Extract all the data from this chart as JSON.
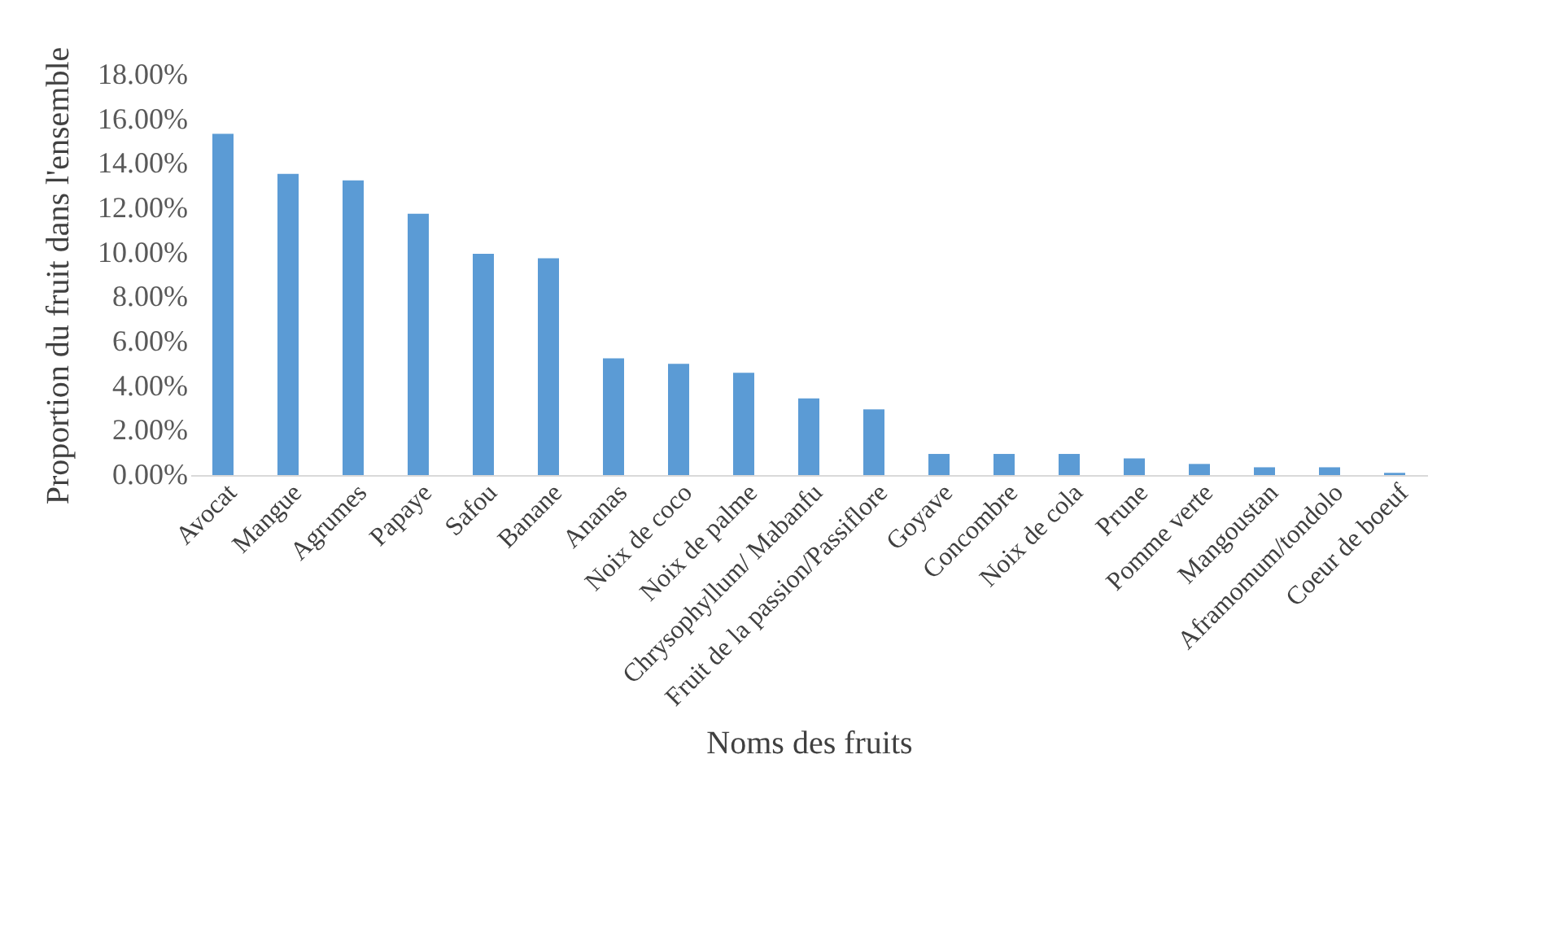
{
  "chart_data": {
    "type": "bar",
    "xlabel": "Noms des fruits",
    "ylabel": "Proportion du fruit dans l'ensemble",
    "categories": [
      "Avocat",
      "Mangue",
      "Agrumes",
      "Papaye",
      "Safou",
      "Banane",
      "Ananas",
      "Noix de coco",
      "Noix de palme",
      "Chrysophyllum/ Mabanfu",
      "Fruit de la passion/Passiflore",
      "Goyave",
      "Concombre",
      "Noix de cola",
      "Prune",
      "Pomme verte",
      "Mangoustan",
      "Aframomum/tondolo",
      "Coeur de boeuf"
    ],
    "values": [
      15.35,
      13.55,
      13.25,
      11.75,
      9.95,
      9.75,
      5.25,
      5.0,
      4.6,
      3.45,
      2.95,
      0.95,
      0.95,
      0.95,
      0.75,
      0.5,
      0.35,
      0.35,
      0.1
    ],
    "color": "#5b9bd5",
    "ylim": [
      0,
      18
    ],
    "yticks": [
      {
        "value": 0,
        "label": "0.00%"
      },
      {
        "value": 2,
        "label": "2.00%"
      },
      {
        "value": 4,
        "label": "4.00%"
      },
      {
        "value": 6,
        "label": "6.00%"
      },
      {
        "value": 8,
        "label": "8.00%"
      },
      {
        "value": 10,
        "label": "10.00%"
      },
      {
        "value": 12,
        "label": "12.00%"
      },
      {
        "value": 14,
        "label": "14.00%"
      },
      {
        "value": 16,
        "label": "16.00%"
      },
      {
        "value": 18,
        "label": "18.00%"
      }
    ],
    "grid": false
  }
}
